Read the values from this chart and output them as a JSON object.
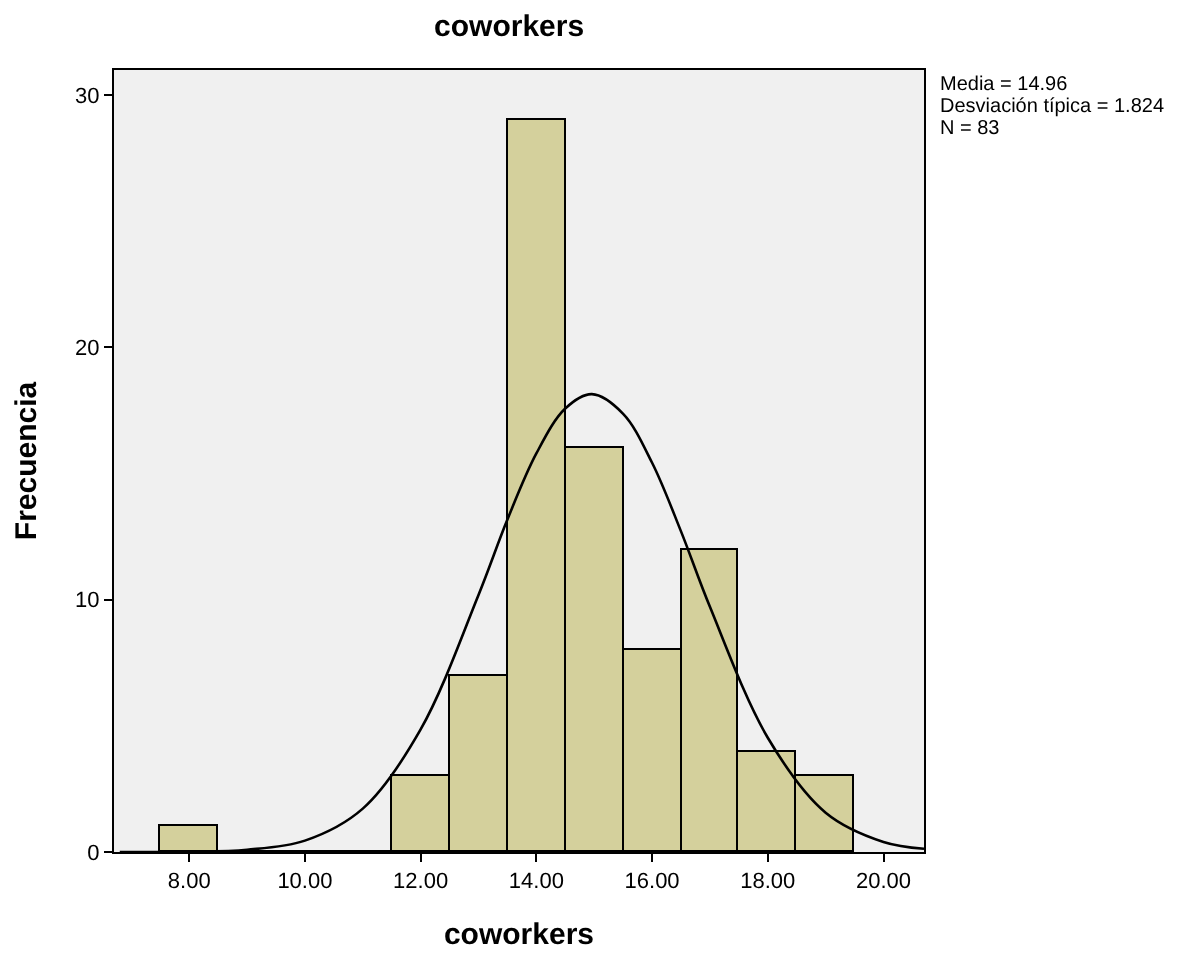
{
  "chart_data": {
    "type": "histogram",
    "title": "coworkers",
    "xlabel": "coworkers",
    "ylabel": "Frecuencia",
    "bins": [
      7.5,
      8.5,
      9.5,
      10.5,
      11.5,
      12.5,
      13.5,
      14.5,
      15.5,
      16.5,
      17.5,
      18.5,
      19.5
    ],
    "values": [
      1,
      0,
      0,
      0,
      3,
      7,
      29,
      16,
      8,
      12,
      4,
      3
    ],
    "color": "#d4d09c",
    "series": [
      {
        "type": "line",
        "color": "#000000",
        "x": [
          6.8,
          8,
          9,
          10,
          11,
          12,
          13,
          13.5,
          14,
          14.5,
          14.96,
          15.5,
          16,
          16.5,
          17,
          18,
          19,
          20,
          20.7
        ],
        "values": [
          0,
          0.01,
          0.09,
          0.45,
          1.72,
          4.86,
          10.19,
          13.18,
          15.8,
          17.58,
          18.15,
          17.37,
          15.43,
          12.71,
          9.72,
          4.53,
          1.56,
          0.4,
          0.13
        ]
      }
    ],
    "xlim": [
      6.7,
      20.7
    ],
    "xticks": [
      {
        "value": 8,
        "label": "8.00"
      },
      {
        "value": 10,
        "label": "10.00"
      },
      {
        "value": 12,
        "label": "12.00"
      },
      {
        "value": 14,
        "label": "14.00"
      },
      {
        "value": 16,
        "label": "16.00"
      },
      {
        "value": 18,
        "label": "18.00"
      },
      {
        "value": 20,
        "label": "20.00"
      }
    ],
    "ylim": [
      0,
      31
    ],
    "yticks": [
      0,
      10,
      20,
      30
    ],
    "grid": false,
    "annotations": [
      "Media = 14.96",
      "Desviación típica = 1.824",
      "N = 83"
    ]
  }
}
